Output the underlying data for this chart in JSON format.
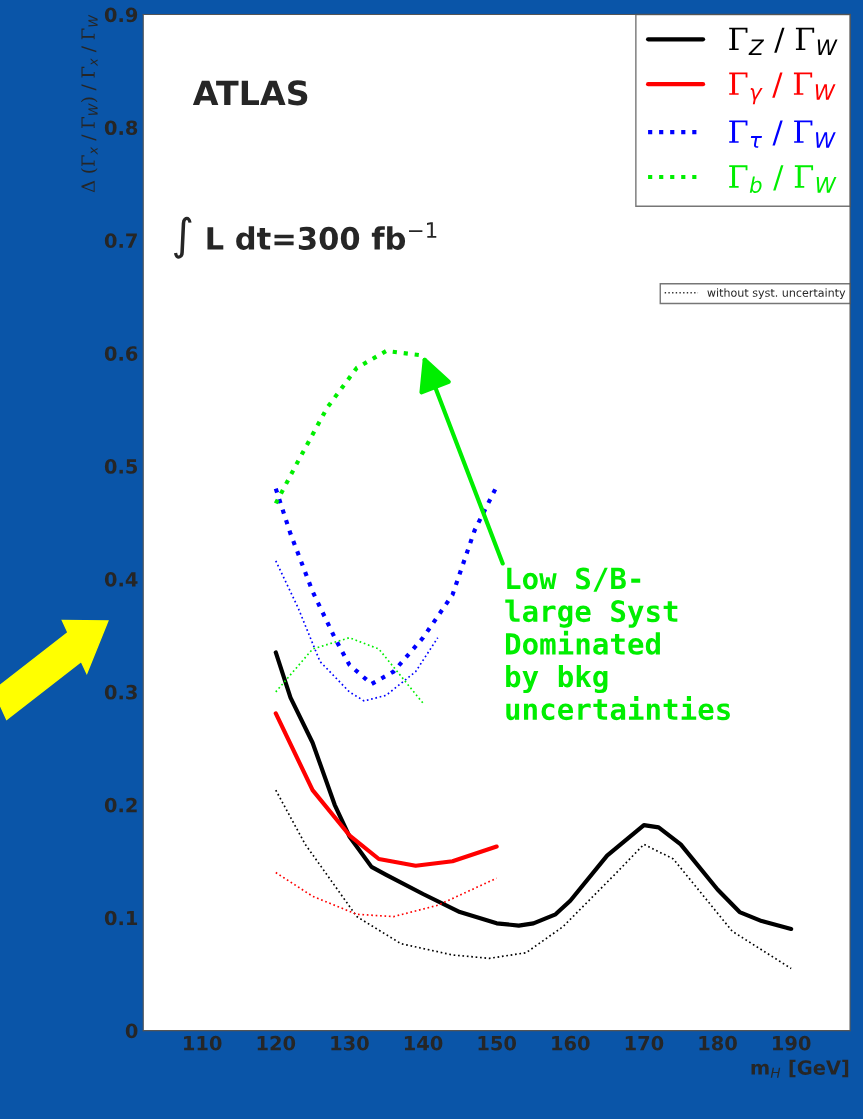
{
  "chart_data": {
    "type": "line",
    "xlabel": "m$_{H}$ [GeV]",
    "ylabel": "Δ (Γ$_{x}$ / Γ$_{W}$) / Γ$_{x}$ / Γ$_{W}$",
    "xlim": [
      102,
      198
    ],
    "ylim": [
      0,
      0.9
    ],
    "xticks": [
      110,
      120,
      130,
      140,
      150,
      160,
      170,
      180,
      190
    ],
    "yticks": [
      0,
      0.1,
      0.2,
      0.3,
      0.4,
      0.5,
      0.6,
      0.7,
      0.8,
      0.9
    ],
    "grid": false,
    "legend": "top right",
    "annotations": [
      "ATLAS",
      "∫ L dt=300 fb$^{−1}$",
      "without syst. uncertainty",
      {
        "text": "Low S/B-\nlarge Syst\nDominated\nby bkg\nuncertainties",
        "x": 140,
        "y": 0.598
      }
    ],
    "series": [
      {
        "name": "Γ$_{Z}$ / Γ$_{W}$",
        "color": "#000000",
        "line_style": "solid",
        "x": [
          120,
          122,
          125,
          128,
          130,
          133,
          135,
          140,
          145,
          150,
          153,
          155,
          158,
          160,
          165,
          170,
          172,
          175,
          180,
          183,
          186,
          190
        ],
        "values": [
          0.335,
          0.295,
          0.255,
          0.2,
          0.172,
          0.145,
          0.138,
          0.121,
          0.105,
          0.095,
          0.093,
          0.095,
          0.103,
          0.115,
          0.155,
          0.182,
          0.18,
          0.165,
          0.125,
          0.105,
          0.097,
          0.09
        ]
      },
      {
        "name": "Γ$_{γ}$ / Γ$_{W}$",
        "color": "#ff0000",
        "line_style": "solid",
        "x": [
          120,
          125,
          130,
          134,
          139,
          144,
          150
        ],
        "values": [
          0.281,
          0.213,
          0.173,
          0.152,
          0.146,
          0.15,
          0.163
        ]
      },
      {
        "name": "Γ$_{τ}$ / Γ$_{W}$",
        "color": "#0000ff",
        "line_style": "dotted",
        "x": [
          120,
          122,
          125,
          128,
          130,
          133,
          136,
          140,
          144,
          147,
          150
        ],
        "values": [
          0.48,
          0.44,
          0.389,
          0.348,
          0.324,
          0.307,
          0.318,
          0.348,
          0.386,
          0.443,
          0.482
        ]
      },
      {
        "name": "Γ$_{b}$ / Γ$_{W}$",
        "color": "#00ee00",
        "line_style": "dotted",
        "x": [
          120,
          123,
          127,
          131,
          135,
          140
        ],
        "values": [
          0.467,
          0.504,
          0.552,
          0.587,
          0.602,
          0.598
        ]
      },
      {
        "color": "#000000",
        "line_style": "dotted",
        "x": [
          120,
          124,
          131,
          137,
          144,
          149,
          154,
          159,
          166,
          170,
          174,
          182,
          190
        ],
        "values": [
          0.213,
          0.165,
          0.101,
          0.077,
          0.067,
          0.064,
          0.069,
          0.092,
          0.138,
          0.165,
          0.152,
          0.088,
          0.055
        ]
      },
      {
        "color": "#ff0000",
        "line_style": "dotted",
        "x": [
          120,
          125,
          131,
          136,
          142,
          150
        ],
        "values": [
          0.14,
          0.119,
          0.103,
          0.101,
          0.111,
          0.135
        ]
      },
      {
        "color": "#0000ff",
        "line_style": "dotted",
        "x": [
          120,
          123,
          126,
          130,
          132,
          135,
          139,
          142
        ],
        "values": [
          0.416,
          0.375,
          0.327,
          0.3,
          0.292,
          0.297,
          0.318,
          0.348
        ]
      },
      {
        "color": "#00ee00",
        "line_style": "dotted",
        "x": [
          120,
          125,
          130,
          134,
          140
        ],
        "values": [
          0.3,
          0.338,
          0.348,
          0.338,
          0.29
        ]
      }
    ]
  }
}
